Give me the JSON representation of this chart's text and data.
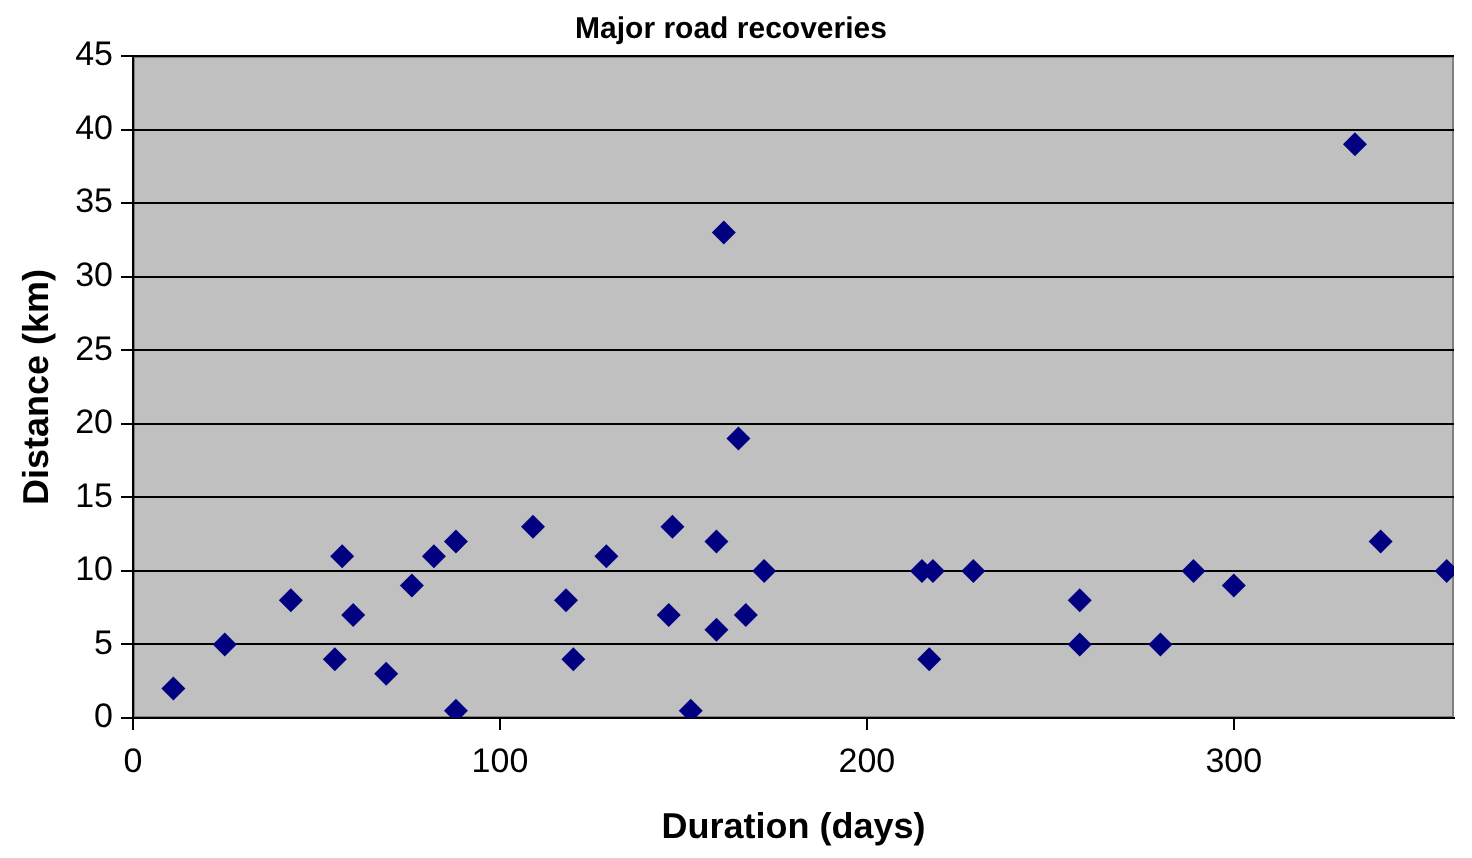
{
  "chart_data": {
    "type": "scatter",
    "title": "Major road recoveries",
    "xlabel": "Duration (days)",
    "ylabel": "Distance (km)",
    "x": [
      11,
      25,
      43,
      55,
      57,
      60,
      69,
      76,
      82,
      88,
      88,
      109,
      118,
      120,
      129,
      146,
      147,
      152,
      159,
      159,
      161,
      165,
      167,
      172,
      215,
      218,
      217,
      229,
      258,
      258,
      280,
      289,
      300,
      333,
      340,
      358
    ],
    "series": [
      {
        "color": "#000080",
        "values": [
          2,
          5,
          8,
          4,
          11,
          7,
          3,
          9,
          11,
          12,
          0.5,
          13,
          8,
          4,
          11,
          7,
          13,
          0.5,
          12,
          6,
          33,
          19,
          7,
          10,
          10,
          10,
          4,
          10,
          8,
          5,
          5,
          10,
          9,
          39,
          12,
          10
        ]
      }
    ],
    "xlim": [
      0,
      360
    ],
    "xticks": [
      0,
      100,
      200,
      300
    ],
    "ylim": [
      0,
      45
    ],
    "yticks": [
      0,
      5,
      10,
      15,
      20,
      25,
      30,
      35,
      40,
      45
    ],
    "grid": "y",
    "legend": false,
    "marker": "diamond"
  }
}
